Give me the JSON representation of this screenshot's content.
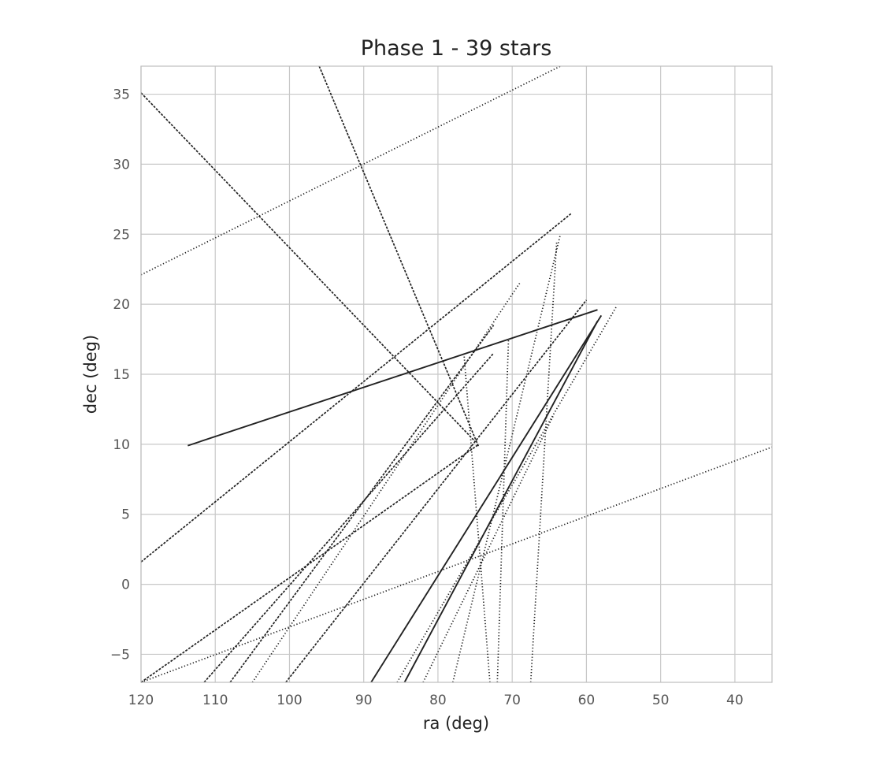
{
  "chart_data": {
    "type": "line",
    "title": "Phase 1 - 39 stars",
    "xlabel": "ra (deg)",
    "ylabel": "dec (deg)",
    "xlim": [
      120,
      35
    ],
    "ylim": [
      -7,
      37
    ],
    "xticks": [
      120,
      110,
      100,
      90,
      80,
      70,
      60,
      50,
      40
    ],
    "yticks": [
      -5,
      0,
      5,
      10,
      15,
      20,
      25,
      30,
      35
    ],
    "xtick_labels": [
      "120",
      "110",
      "100",
      "90",
      "80",
      "70",
      "60",
      "50",
      "40"
    ],
    "ytick_labels": [
      "−5",
      "0",
      "5",
      "10",
      "15",
      "20",
      "25",
      "30",
      "35"
    ],
    "grid": true,
    "line_color": "#222222",
    "grid_color": "#c8c8c8",
    "series": [
      {
        "x": [
          113.7,
          58.5
        ],
        "y": [
          9.9,
          19.6
        ],
        "style": "solid"
      },
      {
        "x": [
          96.0,
          74.5
        ],
        "y": [
          37.0,
          9.8
        ],
        "style": "dashed"
      },
      {
        "x": [
          120.0,
          75.0
        ],
        "y": [
          35.1,
          10.2
        ],
        "style": "dashed"
      },
      {
        "x": [
          120.0,
          63.5
        ],
        "y": [
          22.1,
          37.0
        ],
        "style": "dotted"
      },
      {
        "x": [
          120.0,
          35.0
        ],
        "y": [
          -7.0,
          9.8
        ],
        "style": "dotted"
      },
      {
        "x": [
          120.0,
          62.0
        ],
        "y": [
          1.6,
          26.5
        ],
        "style": "dashed"
      },
      {
        "x": [
          120.0,
          74.5
        ],
        "y": [
          -7.0,
          10.0
        ],
        "style": "dashed"
      },
      {
        "x": [
          111.5,
          72.5
        ],
        "y": [
          -7.0,
          16.5
        ],
        "style": "dashed"
      },
      {
        "x": [
          105.0,
          69.0
        ],
        "y": [
          -7.0,
          21.5
        ],
        "style": "dotted"
      },
      {
        "x": [
          100.5,
          60.0
        ],
        "y": [
          -7.0,
          20.3
        ],
        "style": "dashed"
      },
      {
        "x": [
          89.0,
          58.0
        ],
        "y": [
          -7.0,
          19.2
        ],
        "style": "solid"
      },
      {
        "x": [
          85.5,
          56.0
        ],
        "y": [
          -7.0,
          19.8
        ],
        "style": "dotted"
      },
      {
        "x": [
          84.5,
          58.5
        ],
        "y": [
          -7.0,
          18.8
        ],
        "style": "solid"
      },
      {
        "x": [
          78.0,
          63.5
        ],
        "y": [
          -7.0,
          25.0
        ],
        "style": "dotted"
      },
      {
        "x": [
          67.5,
          64.0
        ],
        "y": [
          -7.0,
          24.5
        ],
        "style": "dotted"
      },
      {
        "x": [
          72.0,
          70.5
        ],
        "y": [
          -7.0,
          17.5
        ],
        "style": "dotted"
      },
      {
        "x": [
          73.0,
          76.5
        ],
        "y": [
          -7.0,
          16.5
        ],
        "style": "dotted"
      },
      {
        "x": [
          82.0,
          64.5
        ],
        "y": [
          -7.0,
          12.0
        ],
        "style": "dotted"
      },
      {
        "x": [
          108.0,
          72.5
        ],
        "y": [
          -7.0,
          18.5
        ],
        "style": "dashed"
      }
    ]
  }
}
